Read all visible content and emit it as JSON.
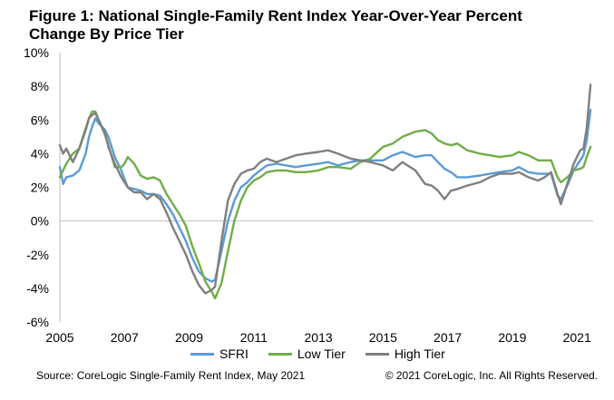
{
  "title": {
    "line1": "Figure 1: National Single-Family Rent Index Year-Over-Year Percent",
    "line2": "Change By Price Tier"
  },
  "source": "Source:  CoreLogic  Single-Family  Rent Index, May 2021",
  "copyright": "© 2021 CoreLogic, Inc. All Rights Reserved.",
  "chart_data": {
    "type": "line",
    "title": "Figure 1: National Single-Family Rent Index Year-Over-Year Percent Change By Price Tier",
    "xlabel": "",
    "ylabel": "",
    "xlim": [
      2005,
      2021.5
    ],
    "ylim": [
      -6,
      10
    ],
    "y_ticks": [
      -6,
      -4,
      -2,
      0,
      2,
      4,
      6,
      8,
      10
    ],
    "y_tick_labels": [
      "-6%",
      "-4%",
      "-2%",
      "0%",
      "2%",
      "4%",
      "6%",
      "8%",
      "10%"
    ],
    "x_ticks": [
      2005,
      2007,
      2009,
      2011,
      2013,
      2015,
      2017,
      2019,
      2021
    ],
    "x_tick_labels": [
      "2005",
      "2007",
      "2009",
      "2011",
      "2013",
      "2015",
      "2017",
      "2019",
      "2021"
    ],
    "grid": false,
    "legend_position": "bottom",
    "series": [
      {
        "name": "SFRI",
        "color": "#5B9BD5",
        "points": [
          [
            2005.0,
            3.2
          ],
          [
            2005.1,
            2.2
          ],
          [
            2005.2,
            2.6
          ],
          [
            2005.4,
            2.7
          ],
          [
            2005.6,
            3.0
          ],
          [
            2005.8,
            4.0
          ],
          [
            2005.9,
            5.0
          ],
          [
            2006.0,
            5.6
          ],
          [
            2006.1,
            6.1
          ],
          [
            2006.2,
            5.8
          ],
          [
            2006.4,
            5.4
          ],
          [
            2006.5,
            5.0
          ],
          [
            2006.7,
            3.8
          ],
          [
            2006.9,
            3.0
          ],
          [
            2007.0,
            2.5
          ],
          [
            2007.1,
            2.0
          ],
          [
            2007.3,
            1.9
          ],
          [
            2007.5,
            1.8
          ],
          [
            2007.7,
            1.6
          ],
          [
            2007.9,
            1.6
          ],
          [
            2008.1,
            1.5
          ],
          [
            2008.3,
            1.0
          ],
          [
            2008.5,
            0.4
          ],
          [
            2008.7,
            -0.4
          ],
          [
            2008.9,
            -1.2
          ],
          [
            2009.1,
            -2.2
          ],
          [
            2009.3,
            -3.0
          ],
          [
            2009.5,
            -3.4
          ],
          [
            2009.7,
            -3.6
          ],
          [
            2009.8,
            -3.5
          ],
          [
            2010.0,
            -1.8
          ],
          [
            2010.2,
            0.0
          ],
          [
            2010.4,
            1.2
          ],
          [
            2010.6,
            2.0
          ],
          [
            2010.8,
            2.3
          ],
          [
            2011.0,
            2.7
          ],
          [
            2011.2,
            3.0
          ],
          [
            2011.4,
            3.3
          ],
          [
            2011.7,
            3.4
          ],
          [
            2012.0,
            3.3
          ],
          [
            2012.3,
            3.2
          ],
          [
            2012.6,
            3.3
          ],
          [
            2013.0,
            3.4
          ],
          [
            2013.3,
            3.5
          ],
          [
            2013.6,
            3.3
          ],
          [
            2014.0,
            3.5
          ],
          [
            2014.3,
            3.6
          ],
          [
            2014.6,
            3.6
          ],
          [
            2015.0,
            3.6
          ],
          [
            2015.3,
            3.9
          ],
          [
            2015.6,
            4.1
          ],
          [
            2016.0,
            3.8
          ],
          [
            2016.3,
            3.9
          ],
          [
            2016.5,
            3.9
          ],
          [
            2016.7,
            3.5
          ],
          [
            2016.9,
            3.1
          ],
          [
            2017.1,
            2.9
          ],
          [
            2017.3,
            2.6
          ],
          [
            2017.6,
            2.6
          ],
          [
            2018.0,
            2.7
          ],
          [
            2018.3,
            2.8
          ],
          [
            2018.6,
            2.9
          ],
          [
            2019.0,
            3.0
          ],
          [
            2019.2,
            3.2
          ],
          [
            2019.5,
            2.9
          ],
          [
            2019.8,
            2.8
          ],
          [
            2020.0,
            2.8
          ],
          [
            2020.2,
            2.8
          ],
          [
            2020.4,
            1.5
          ],
          [
            2020.5,
            1.3
          ],
          [
            2020.7,
            2.1
          ],
          [
            2020.9,
            3.0
          ],
          [
            2021.1,
            3.6
          ],
          [
            2021.2,
            3.9
          ],
          [
            2021.3,
            4.8
          ],
          [
            2021.42,
            6.6
          ]
        ]
      },
      {
        "name": "Low Tier",
        "color": "#70AD47",
        "points": [
          [
            2005.0,
            2.6
          ],
          [
            2005.1,
            3.0
          ],
          [
            2005.2,
            3.4
          ],
          [
            2005.4,
            4.0
          ],
          [
            2005.6,
            4.3
          ],
          [
            2005.8,
            5.5
          ],
          [
            2005.9,
            6.1
          ],
          [
            2006.0,
            6.5
          ],
          [
            2006.1,
            6.5
          ],
          [
            2006.2,
            6.0
          ],
          [
            2006.4,
            5.1
          ],
          [
            2006.5,
            4.5
          ],
          [
            2006.7,
            3.2
          ],
          [
            2006.9,
            3.2
          ],
          [
            2007.0,
            3.4
          ],
          [
            2007.1,
            3.8
          ],
          [
            2007.3,
            3.4
          ],
          [
            2007.5,
            2.7
          ],
          [
            2007.7,
            2.5
          ],
          [
            2007.9,
            2.6
          ],
          [
            2008.1,
            2.4
          ],
          [
            2008.3,
            1.6
          ],
          [
            2008.5,
            1.0
          ],
          [
            2008.7,
            0.4
          ],
          [
            2008.9,
            -0.3
          ],
          [
            2009.1,
            -1.5
          ],
          [
            2009.3,
            -2.5
          ],
          [
            2009.5,
            -3.6
          ],
          [
            2009.7,
            -4.2
          ],
          [
            2009.8,
            -4.6
          ],
          [
            2010.0,
            -3.7
          ],
          [
            2010.2,
            -1.8
          ],
          [
            2010.4,
            0.0
          ],
          [
            2010.6,
            1.2
          ],
          [
            2010.8,
            2.0
          ],
          [
            2011.0,
            2.4
          ],
          [
            2011.2,
            2.6
          ],
          [
            2011.4,
            2.9
          ],
          [
            2011.7,
            3.0
          ],
          [
            2012.0,
            3.0
          ],
          [
            2012.3,
            2.9
          ],
          [
            2012.6,
            2.9
          ],
          [
            2013.0,
            3.0
          ],
          [
            2013.3,
            3.2
          ],
          [
            2013.6,
            3.2
          ],
          [
            2014.0,
            3.1
          ],
          [
            2014.3,
            3.5
          ],
          [
            2014.6,
            3.7
          ],
          [
            2015.0,
            4.4
          ],
          [
            2015.3,
            4.6
          ],
          [
            2015.6,
            5.0
          ],
          [
            2016.0,
            5.3
          ],
          [
            2016.3,
            5.4
          ],
          [
            2016.5,
            5.2
          ],
          [
            2016.7,
            4.8
          ],
          [
            2016.9,
            4.6
          ],
          [
            2017.1,
            4.5
          ],
          [
            2017.3,
            4.6
          ],
          [
            2017.6,
            4.2
          ],
          [
            2018.0,
            4.0
          ],
          [
            2018.3,
            3.9
          ],
          [
            2018.6,
            3.8
          ],
          [
            2019.0,
            3.9
          ],
          [
            2019.2,
            4.1
          ],
          [
            2019.5,
            3.9
          ],
          [
            2019.8,
            3.6
          ],
          [
            2020.0,
            3.6
          ],
          [
            2020.2,
            3.6
          ],
          [
            2020.4,
            2.6
          ],
          [
            2020.5,
            2.3
          ],
          [
            2020.7,
            2.6
          ],
          [
            2020.9,
            3.0
          ],
          [
            2021.1,
            3.1
          ],
          [
            2021.2,
            3.2
          ],
          [
            2021.3,
            3.8
          ],
          [
            2021.42,
            4.4
          ]
        ]
      },
      {
        "name": "High Tier",
        "color": "#7F7F7F",
        "points": [
          [
            2005.0,
            4.5
          ],
          [
            2005.1,
            4.0
          ],
          [
            2005.2,
            4.3
          ],
          [
            2005.4,
            3.5
          ],
          [
            2005.6,
            4.3
          ],
          [
            2005.8,
            5.4
          ],
          [
            2005.9,
            6.1
          ],
          [
            2006.0,
            6.3
          ],
          [
            2006.1,
            6.4
          ],
          [
            2006.2,
            6.0
          ],
          [
            2006.4,
            5.2
          ],
          [
            2006.5,
            4.4
          ],
          [
            2006.7,
            3.4
          ],
          [
            2006.9,
            2.6
          ],
          [
            2007.0,
            2.3
          ],
          [
            2007.1,
            2.0
          ],
          [
            2007.3,
            1.7
          ],
          [
            2007.5,
            1.7
          ],
          [
            2007.7,
            1.3
          ],
          [
            2007.9,
            1.6
          ],
          [
            2008.1,
            1.3
          ],
          [
            2008.3,
            0.5
          ],
          [
            2008.5,
            -0.4
          ],
          [
            2008.7,
            -1.2
          ],
          [
            2008.9,
            -2.0
          ],
          [
            2009.1,
            -3.0
          ],
          [
            2009.3,
            -3.8
          ],
          [
            2009.5,
            -4.3
          ],
          [
            2009.7,
            -4.1
          ],
          [
            2009.8,
            -3.9
          ],
          [
            2010.0,
            -1.2
          ],
          [
            2010.2,
            1.2
          ],
          [
            2010.4,
            2.2
          ],
          [
            2010.6,
            2.8
          ],
          [
            2010.8,
            3.0
          ],
          [
            2011.0,
            3.1
          ],
          [
            2011.2,
            3.5
          ],
          [
            2011.4,
            3.7
          ],
          [
            2011.7,
            3.5
          ],
          [
            2012.0,
            3.7
          ],
          [
            2012.3,
            3.9
          ],
          [
            2012.6,
            4.0
          ],
          [
            2013.0,
            4.1
          ],
          [
            2013.3,
            4.2
          ],
          [
            2013.6,
            4.0
          ],
          [
            2014.0,
            3.7
          ],
          [
            2014.3,
            3.6
          ],
          [
            2014.6,
            3.5
          ],
          [
            2015.0,
            3.3
          ],
          [
            2015.3,
            3.0
          ],
          [
            2015.6,
            3.5
          ],
          [
            2016.0,
            3.0
          ],
          [
            2016.3,
            2.2
          ],
          [
            2016.5,
            2.1
          ],
          [
            2016.7,
            1.8
          ],
          [
            2016.9,
            1.3
          ],
          [
            2017.1,
            1.8
          ],
          [
            2017.3,
            1.9
          ],
          [
            2017.6,
            2.1
          ],
          [
            2018.0,
            2.3
          ],
          [
            2018.3,
            2.6
          ],
          [
            2018.6,
            2.8
          ],
          [
            2019.0,
            2.8
          ],
          [
            2019.2,
            2.9
          ],
          [
            2019.5,
            2.6
          ],
          [
            2019.8,
            2.4
          ],
          [
            2020.0,
            2.6
          ],
          [
            2020.2,
            2.9
          ],
          [
            2020.4,
            1.6
          ],
          [
            2020.5,
            1.0
          ],
          [
            2020.7,
            2.2
          ],
          [
            2020.9,
            3.4
          ],
          [
            2021.1,
            4.2
          ],
          [
            2021.2,
            4.3
          ],
          [
            2021.3,
            5.5
          ],
          [
            2021.42,
            8.1
          ]
        ]
      }
    ]
  }
}
